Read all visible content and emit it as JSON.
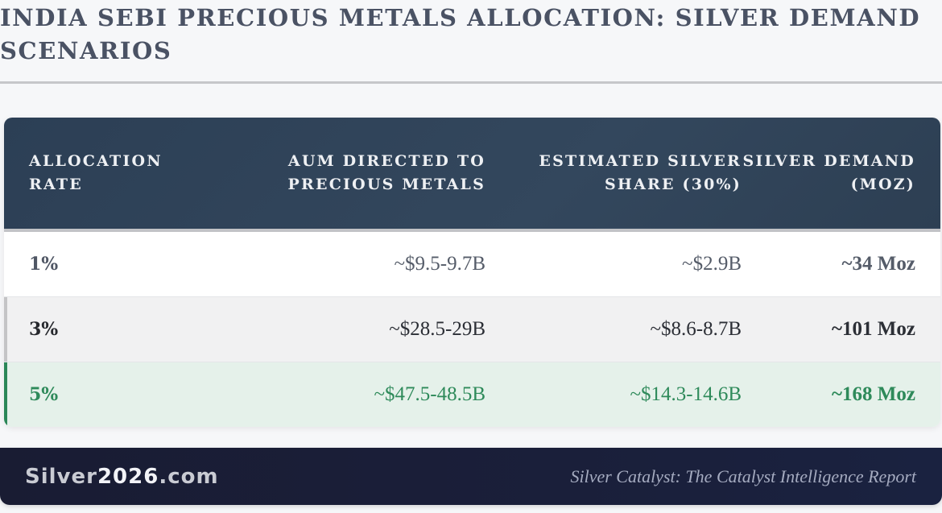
{
  "page": {
    "title": "INDIA SEBI PRECIOUS METALS ALLOCATION: SILVER DEMAND SCENARIOS"
  },
  "table": {
    "headers": [
      "ALLOCATION RATE",
      "AUM DIRECTED TO PRECIOUS METALS",
      "ESTIMATED SILVER SHARE (30%)",
      "SILVER DEMAND (MOZ)"
    ],
    "rows": [
      {
        "allocation_rate": "1%",
        "aum": "~$9.5-9.7B",
        "silver_share": "~$2.9B",
        "demand": "~34 Moz"
      },
      {
        "allocation_rate": "3%",
        "aum": "~$28.5-29B",
        "silver_share": "~$8.6-8.7B",
        "demand": "~101 Moz"
      },
      {
        "allocation_rate": "5%",
        "aum": "~$47.5-48.5B",
        "silver_share": "~$14.3-14.6B",
        "demand": "~168 Moz"
      }
    ]
  },
  "footer": {
    "brand_prefix": "Silver",
    "brand_number": "2026",
    "brand_suffix": ".com",
    "tagline": "Silver Catalyst: The Catalyst Intelligence Report"
  },
  "colors": {
    "header_bg": "#2f4358",
    "highlight_green": "#2e8a5a",
    "highlight_row_bg": "#e5f1ea",
    "footer_bg": "#1a1e38",
    "title_text": "#4a5264"
  }
}
